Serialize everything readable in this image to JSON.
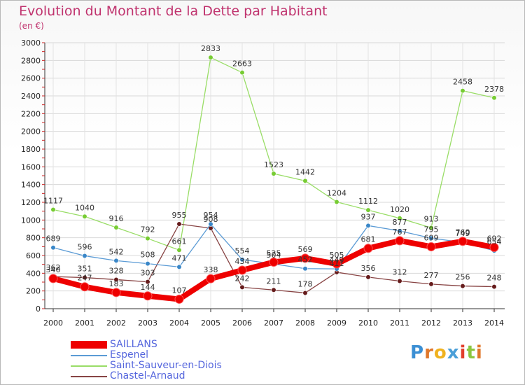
{
  "chart_data": {
    "type": "line",
    "title": "Evolution du Montant de la Dette par Habitant",
    "subtitle": "(en €)",
    "xlabel": "",
    "ylabel": "",
    "x": [
      "2000",
      "2001",
      "2002",
      "2003",
      "2004",
      "2005",
      "2006",
      "2007",
      "2008",
      "2009",
      "2010",
      "2011",
      "2012",
      "2013",
      "2014"
    ],
    "ylim": [
      0,
      3000
    ],
    "yticks": [
      "0",
      "200",
      "400",
      "600",
      "800",
      "1000",
      "1200",
      "1400",
      "1600",
      "1800",
      "2000",
      "2200",
      "2400",
      "2600",
      "2800",
      "3000"
    ],
    "grid": true,
    "legend_position": "bottom-left",
    "series": [
      {
        "name": "SAILLANS",
        "color": "#ee0000",
        "point_color": "#ee0000",
        "values": [
          340,
          247,
          183,
          144,
          107,
          338,
          434,
          525,
          569,
          505,
          681,
          767,
          699,
          760,
          692
        ],
        "labels": [
          "340",
          "247",
          "183",
          "144",
          "107",
          "338",
          "434",
          "525",
          "569",
          "505",
          "681",
          "767",
          "699",
          "760",
          "692"
        ]
      },
      {
        "name": "Espenel",
        "color": "#5b9bd5",
        "point_color": "#3a87c8",
        "values": [
          689,
          596,
          542,
          508,
          471,
          954,
          554,
          504,
          452,
          449,
          937,
          877,
          795,
          749,
          654
        ],
        "labels": [
          "689",
          "596",
          "542",
          "508",
          "471",
          "954",
          "554",
          "504",
          "452",
          "449",
          "937",
          "877",
          "795",
          "749",
          "654"
        ]
      },
      {
        "name": "Saint-Sauveur-en-Diois",
        "color": "#99dd66",
        "point_color": "#77cc33",
        "values": [
          1117,
          1040,
          916,
          792,
          661,
          2833,
          2663,
          1523,
          1442,
          1204,
          1112,
          1020,
          913,
          2458,
          2378
        ],
        "labels": [
          "1117",
          "1040",
          "916",
          "792",
          "661",
          "2833",
          "2663",
          "1523",
          "1442",
          "1204",
          "1112",
          "1020",
          "913",
          "2458",
          "2378"
        ]
      },
      {
        "name": "Chastel-Arnaud",
        "color": "#884444",
        "point_color": "#661c1c",
        "values": [
          362,
          351,
          328,
          303,
          955,
          908,
          242,
          211,
          178,
          411,
          356,
          312,
          277,
          256,
          248
        ],
        "labels": [
          "362",
          "351",
          "328",
          "303",
          "955",
          "908",
          "242",
          "211",
          "178",
          "411",
          "356",
          "312",
          "277",
          "256",
          "248"
        ]
      }
    ]
  },
  "logo": {
    "letters": [
      "P",
      "r",
      "o",
      "x",
      "i",
      "t",
      "i"
    ]
  }
}
